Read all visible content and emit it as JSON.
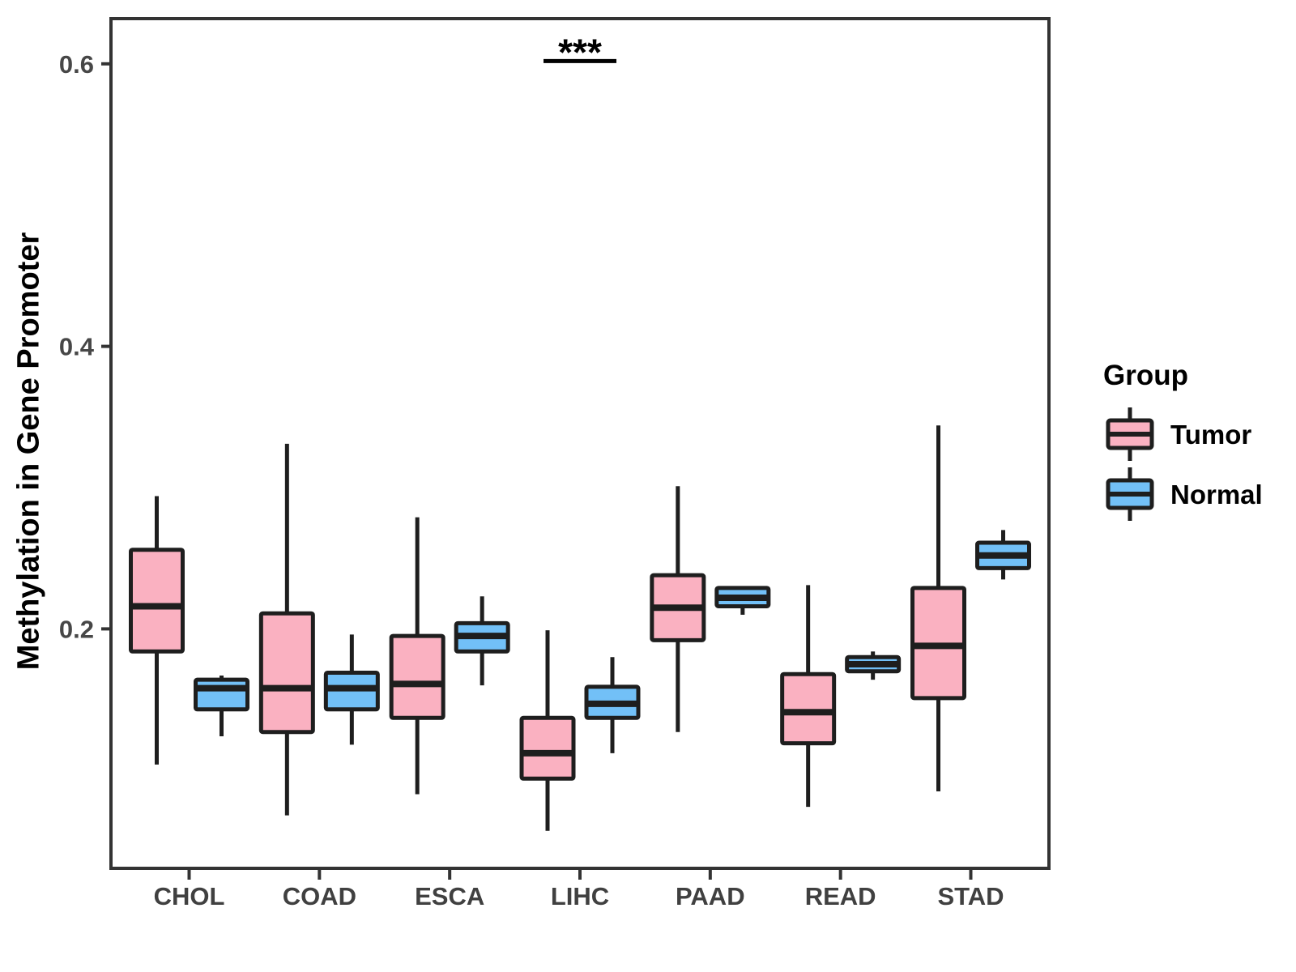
{
  "chart_data": {
    "type": "grouped_boxplot",
    "title": "",
    "xlabel": "",
    "ylabel": "Methylation in Gene Promoter",
    "categories": [
      "CHOL",
      "COAD",
      "ESCA",
      "LIHC",
      "PAAD",
      "READ",
      "STAD"
    ],
    "groups": [
      "Tumor",
      "Normal"
    ],
    "ylim": [
      0.03,
      0.63
    ],
    "yticks": [
      0.2,
      0.4,
      0.6
    ],
    "ytick_labels": [
      "0.2",
      "0.4",
      "0.6"
    ],
    "grid": false,
    "colors": {
      "tumor_fill": "#FAB1C1",
      "normal_fill": "#72C0F7",
      "box_stroke": "#1E1E1E",
      "axis_stroke": "#333333",
      "tick_text": "#474747",
      "category_text": "#404040"
    },
    "legend": {
      "title": "Group",
      "position": "right",
      "entries": [
        {
          "label": "Tumor",
          "color": "#FAB1C1"
        },
        {
          "label": "Normal",
          "color": "#72C0F7"
        }
      ]
    },
    "series": [
      {
        "name": "Tumor",
        "fill": "#FAB1C1",
        "boxes": [
          {
            "category": "CHOL",
            "low": 0.104,
            "q1": 0.184,
            "median": 0.216,
            "q3": 0.256,
            "high": 0.294
          },
          {
            "category": "COAD",
            "low": 0.068,
            "q1": 0.127,
            "median": 0.158,
            "q3": 0.211,
            "high": 0.331
          },
          {
            "category": "ESCA",
            "low": 0.083,
            "q1": 0.137,
            "median": 0.161,
            "q3": 0.195,
            "high": 0.279
          },
          {
            "category": "LIHC",
            "low": 0.057,
            "q1": 0.094,
            "median": 0.112,
            "q3": 0.137,
            "high": 0.199
          },
          {
            "category": "PAAD",
            "low": 0.127,
            "q1": 0.192,
            "median": 0.215,
            "q3": 0.238,
            "high": 0.301
          },
          {
            "category": "READ",
            "low": 0.074,
            "q1": 0.119,
            "median": 0.141,
            "q3": 0.168,
            "high": 0.231
          },
          {
            "category": "STAD",
            "low": 0.085,
            "q1": 0.151,
            "median": 0.188,
            "q3": 0.229,
            "high": 0.344
          }
        ]
      },
      {
        "name": "Normal",
        "fill": "#72C0F7",
        "boxes": [
          {
            "category": "CHOL",
            "low": 0.124,
            "q1": 0.143,
            "median": 0.158,
            "q3": 0.164,
            "high": 0.167
          },
          {
            "category": "COAD",
            "low": 0.118,
            "q1": 0.143,
            "median": 0.158,
            "q3": 0.169,
            "high": 0.196
          },
          {
            "category": "ESCA",
            "low": 0.16,
            "q1": 0.184,
            "median": 0.195,
            "q3": 0.204,
            "high": 0.223
          },
          {
            "category": "LIHC",
            "low": 0.112,
            "q1": 0.137,
            "median": 0.147,
            "q3": 0.159,
            "high": 0.18
          },
          {
            "category": "PAAD",
            "low": 0.21,
            "q1": 0.216,
            "median": 0.222,
            "q3": 0.229,
            "high": 0.229
          },
          {
            "category": "READ",
            "low": 0.164,
            "q1": 0.17,
            "median": 0.175,
            "q3": 0.18,
            "high": 0.184
          },
          {
            "category": "STAD",
            "low": 0.235,
            "q1": 0.243,
            "median": 0.252,
            "q3": 0.261,
            "high": 0.27
          }
        ]
      }
    ],
    "annotations": [
      {
        "type": "significance",
        "label": "***",
        "category": "LIHC",
        "line_y": 0.602
      }
    ]
  }
}
